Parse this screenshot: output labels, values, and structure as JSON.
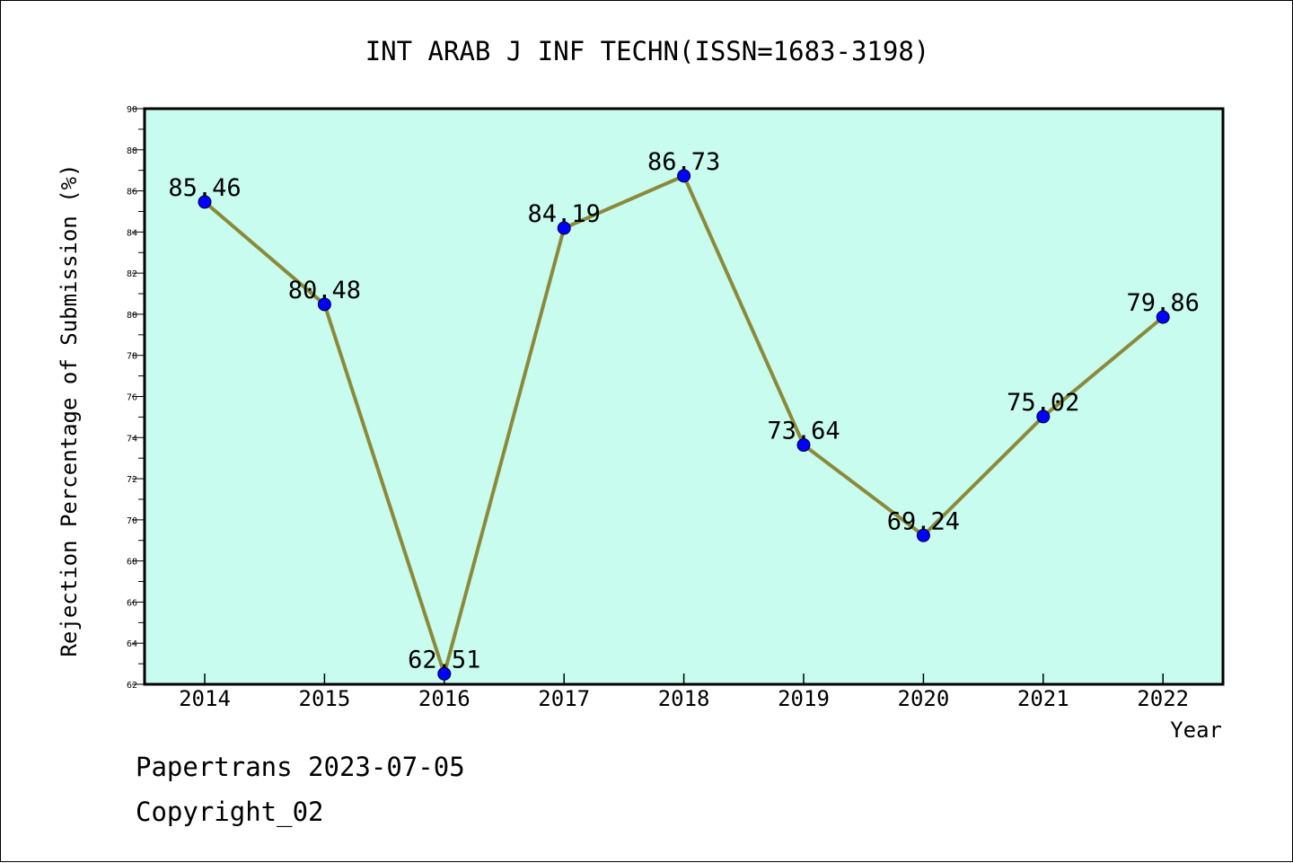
{
  "chart_data": {
    "type": "line",
    "title": "INT ARAB J INF TECHN(ISSN=1683-3198)",
    "xlabel": "Year",
    "ylabel": "Rejection Percentage of Submission (%)",
    "categories": [
      "2014",
      "2015",
      "2016",
      "2017",
      "2018",
      "2019",
      "2020",
      "2021",
      "2022"
    ],
    "values": [
      85.46,
      80.48,
      62.51,
      84.19,
      86.73,
      73.64,
      69.24,
      75.02,
      79.86
    ],
    "data_labels": [
      "85.46",
      "80.48",
      "62.51",
      "84.19",
      "86.73",
      "73.64",
      "69.24",
      "75.02",
      "79.86"
    ],
    "ylim": [
      62,
      90
    ],
    "yticks": [
      "62",
      "64",
      "66",
      "68",
      "70",
      "72",
      "74",
      "76",
      "78",
      "80",
      "82",
      "84",
      "86",
      "88",
      "90"
    ],
    "grid": false,
    "colors": {
      "plot_background": "#c8fcee",
      "line": "#8b8a3a",
      "marker": "#0000ff"
    }
  },
  "footer": {
    "line1": "Papertrans 2023-07-05",
    "line2": "Copyright_02"
  }
}
